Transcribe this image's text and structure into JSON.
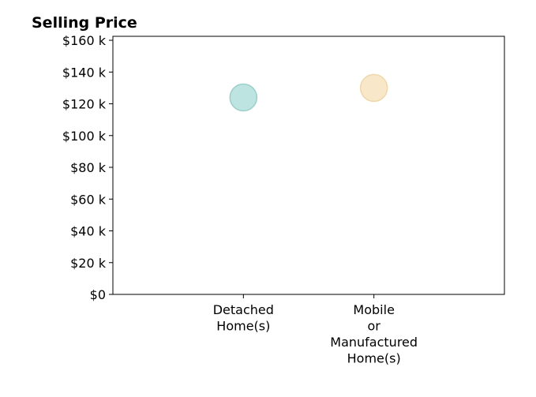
{
  "chart_data": {
    "type": "scatter",
    "title": "Selling Price",
    "xlabel": "",
    "ylabel": "",
    "categories": [
      [
        "Detached",
        "Home(s)"
      ],
      [
        "Mobile",
        "or",
        "Manufactured",
        "Home(s)"
      ]
    ],
    "values": [
      124000,
      130000
    ],
    "point_colors": [
      "#b2dfdb",
      "#f7e4c0"
    ],
    "point_stroke_colors": [
      "#9ccfca",
      "#efd7aa"
    ],
    "y_ticks": [
      0,
      20000,
      40000,
      60000,
      80000,
      100000,
      120000,
      140000,
      160000
    ],
    "y_tick_labels": [
      "$0",
      "$20 k",
      "$40 k",
      "$60 k",
      "$80 k",
      "$100 k",
      "$120 k",
      "$140 k",
      "$160 k"
    ],
    "ylim": [
      0,
      162500
    ],
    "x_range": [
      0,
      3
    ],
    "grid": false,
    "legend": "none"
  }
}
